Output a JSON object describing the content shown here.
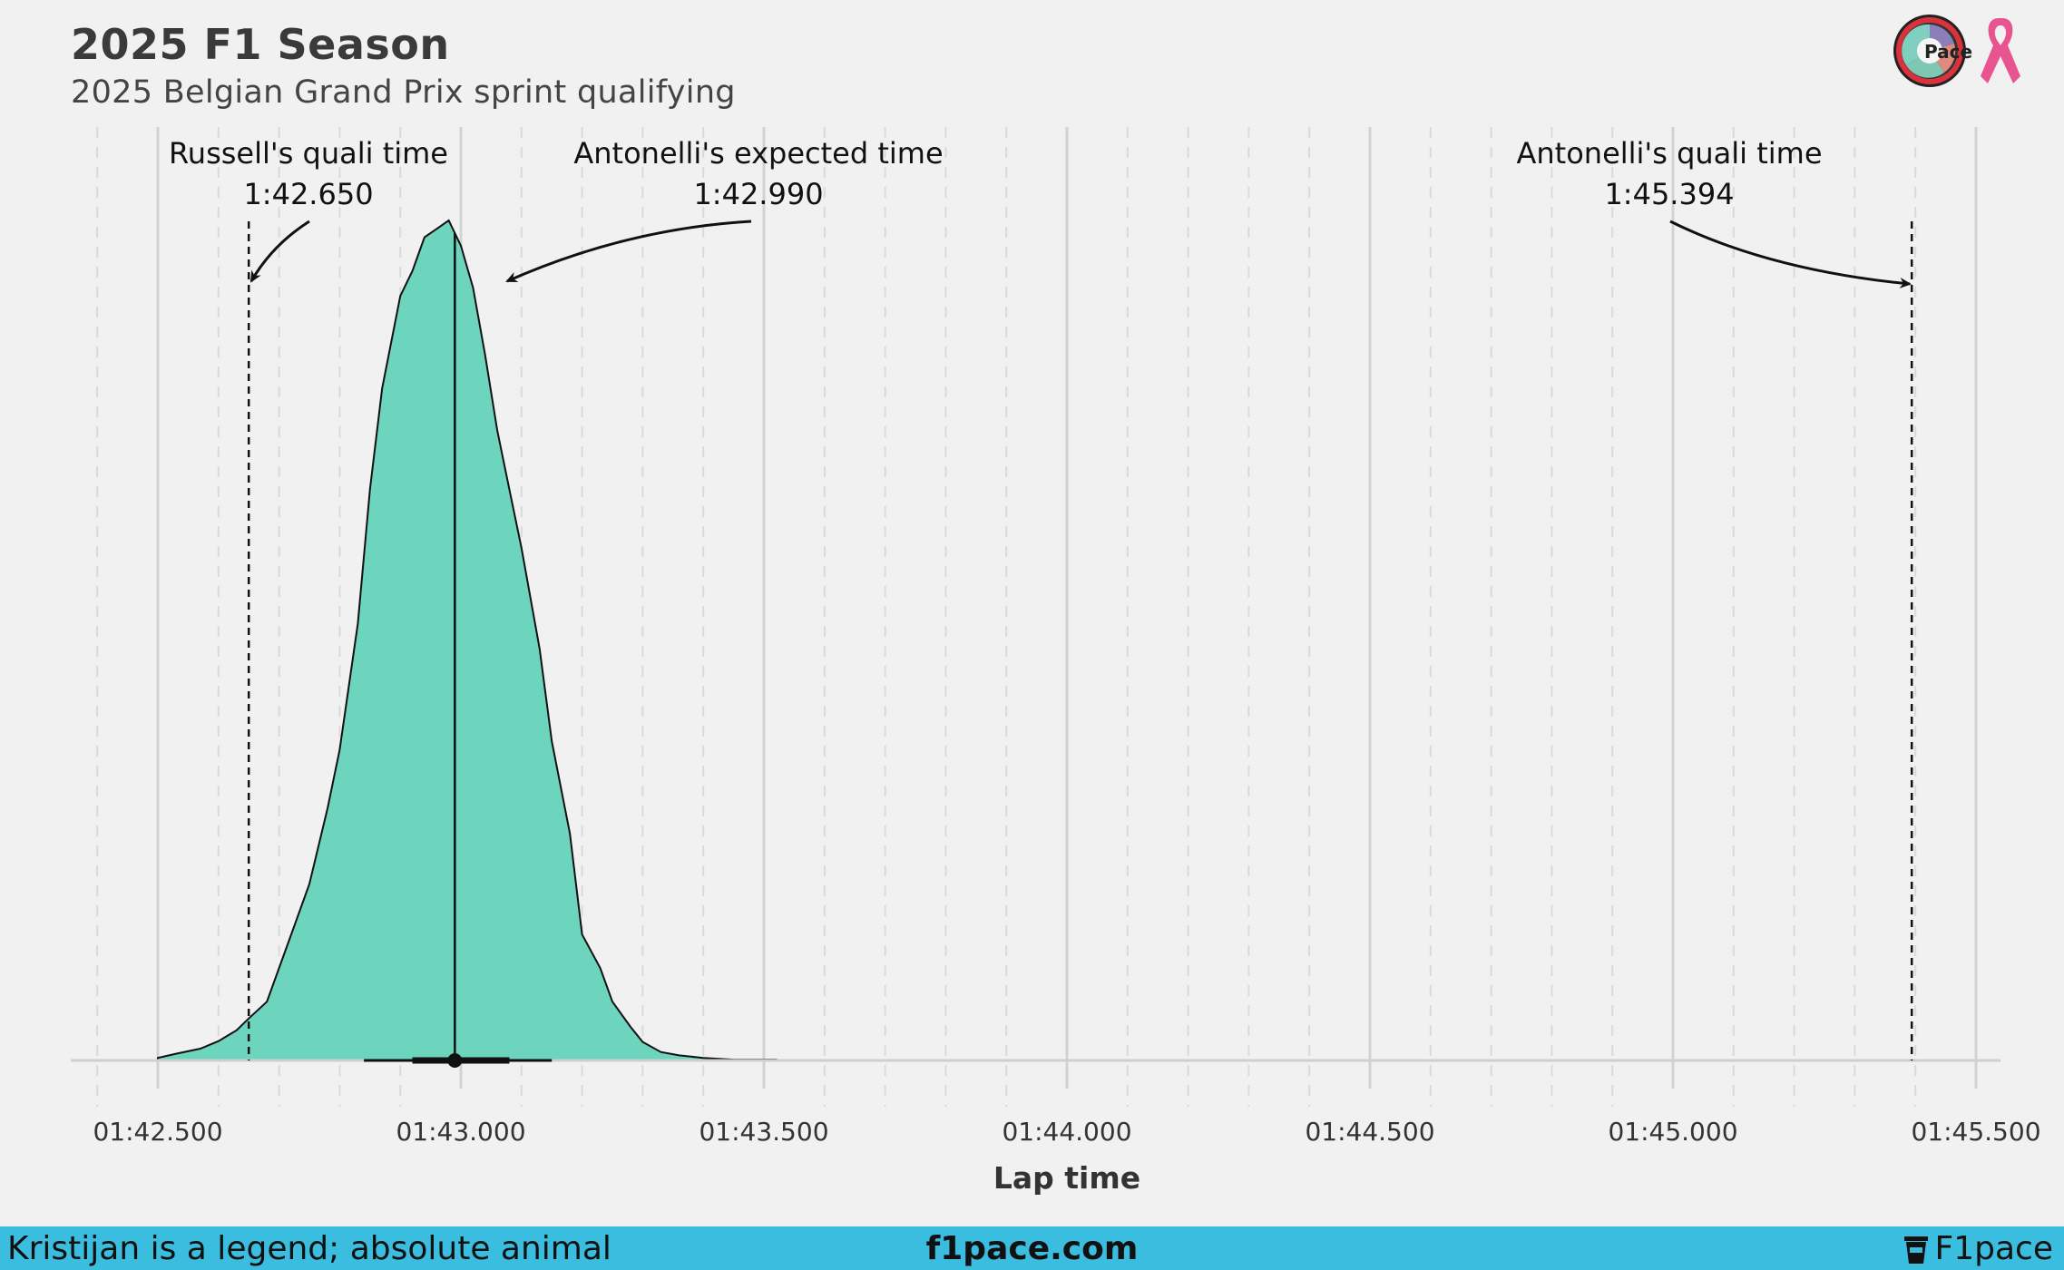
{
  "header": {
    "title": "2025 F1 Season",
    "subtitle": "2025 Belgian Grand Prix sprint qualifying"
  },
  "logos": {
    "pace_icon": "pace-logo-icon",
    "ribbon_icon": "pink-ribbon-icon",
    "pace_text": "Pace"
  },
  "colors": {
    "background": "#f1f1f1",
    "density_fill": "#6dd4be",
    "footer": "#3bbde0",
    "ribbon": "#e8548f"
  },
  "chart_data": {
    "type": "area",
    "title": "2025 F1 Season",
    "subtitle": "2025 Belgian Grand Prix sprint qualifying",
    "xlabel": "Lap time",
    "ylabel": "",
    "x_unit": "seconds",
    "xlim": [
      102.39,
      105.54
    ],
    "ylim": [
      0,
      1.03
    ],
    "grid": "vertical major and minor",
    "ticks": [
      {
        "value": 102.5,
        "label": "01:42.500"
      },
      {
        "value": 103.0,
        "label": "01:43.000"
      },
      {
        "value": 103.5,
        "label": "01:43.500"
      },
      {
        "value": 104.0,
        "label": "01:44.000"
      },
      {
        "value": 104.5,
        "label": "01:44.500"
      },
      {
        "value": 105.0,
        "label": "01:45.000"
      },
      {
        "value": 105.5,
        "label": "01:45.500"
      }
    ],
    "density": {
      "x": [
        102.5,
        102.53,
        102.57,
        102.6,
        102.63,
        102.65,
        102.68,
        102.7,
        102.72,
        102.75,
        102.78,
        102.8,
        102.83,
        102.85,
        102.87,
        102.9,
        102.92,
        102.94,
        102.96,
        102.98,
        103.0,
        103.02,
        103.04,
        103.06,
        103.08,
        103.1,
        103.13,
        103.15,
        103.18,
        103.2,
        103.23,
        103.25,
        103.28,
        103.3,
        103.33,
        103.36,
        103.4,
        103.45,
        103.52
      ],
      "y": [
        0.003,
        0.008,
        0.014,
        0.023,
        0.036,
        0.05,
        0.07,
        0.11,
        0.15,
        0.21,
        0.3,
        0.37,
        0.52,
        0.68,
        0.8,
        0.91,
        0.94,
        0.98,
        0.99,
        1.0,
        0.97,
        0.92,
        0.84,
        0.75,
        0.68,
        0.61,
        0.49,
        0.38,
        0.27,
        0.15,
        0.11,
        0.07,
        0.04,
        0.022,
        0.01,
        0.006,
        0.003,
        0.001,
        0.001
      ]
    },
    "interval": {
      "point": 102.99,
      "inner": [
        102.92,
        103.08
      ],
      "outer": [
        102.84,
        103.15
      ]
    },
    "annotations": [
      {
        "label": "Russell's quali time",
        "value_text": "1:42.650",
        "x": 102.65
      },
      {
        "label": "Antonelli's expected time",
        "value_text": "1:42.990",
        "x": 102.99
      },
      {
        "label": "Antonelli's quali time",
        "value_text": "1:45.394",
        "x": 105.394
      }
    ]
  },
  "footer": {
    "left_text": "Kristijan is a legend; absolute animal",
    "center_text": "f1pace.com",
    "right_text": "F1pace",
    "right_icon": "coffee-cup-icon"
  }
}
